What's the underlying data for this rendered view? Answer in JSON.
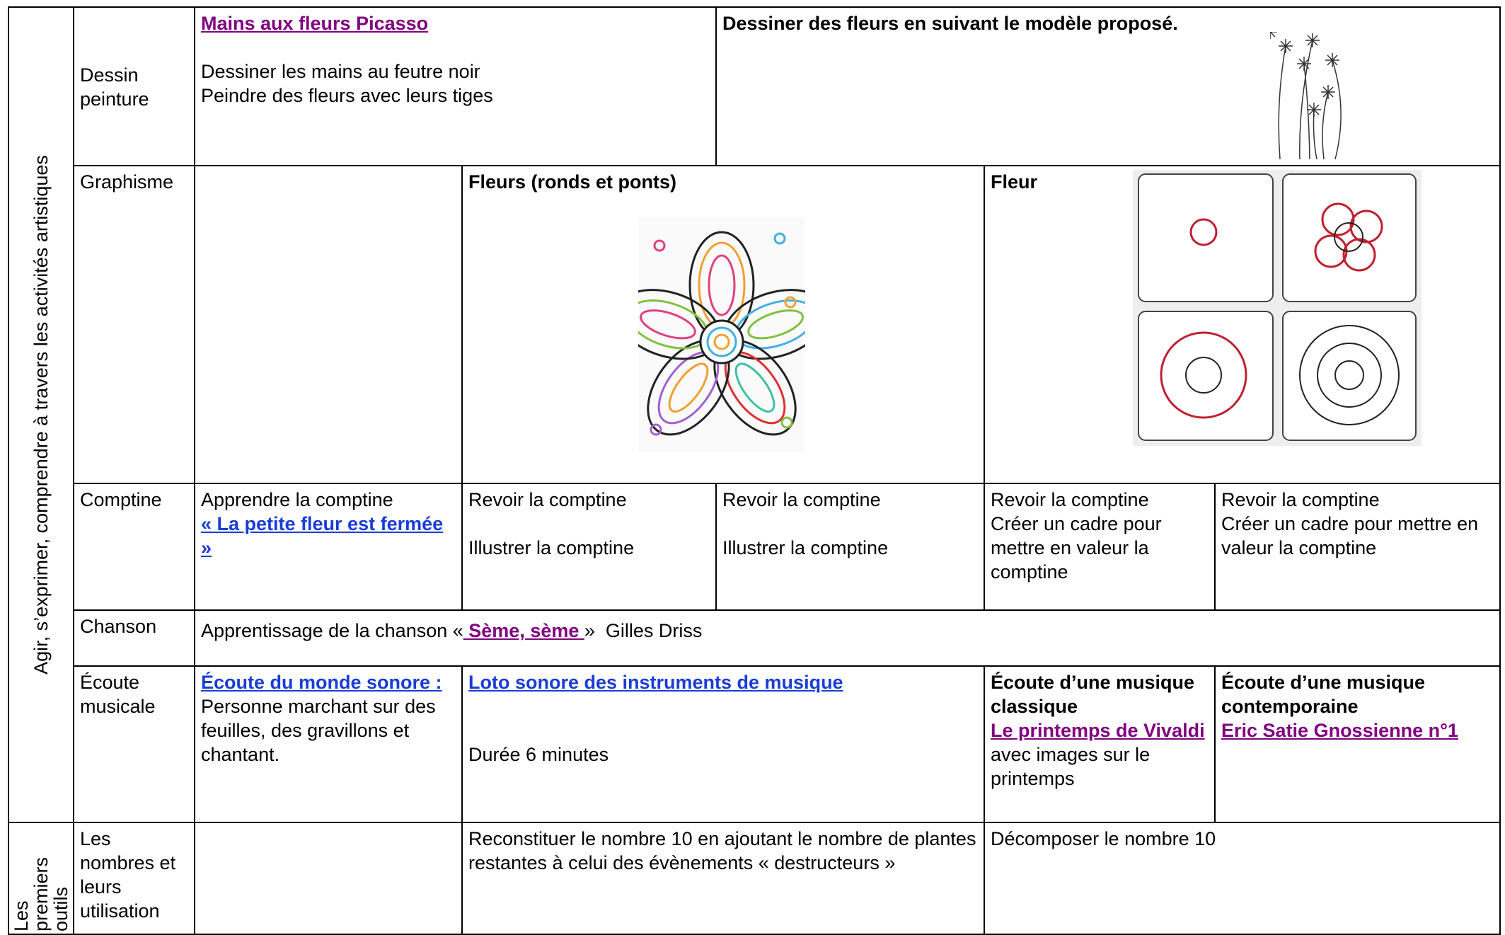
{
  "side_labels": [
    "Agir, s’exprimer, comprendre à travers les activités artistiques",
    "Les premiers outils"
  ],
  "rows": [
    {
      "label": "Dessin peinture",
      "cells": [
        {
          "link": "Mains aux fleurs Picasso",
          "lines": [
            "Dessiner les mains au feutre noir",
            "Peindre des fleurs avec leurs tiges"
          ]
        },
        {
          "heading": "Dessiner des fleurs en suivant le modèle proposé."
        }
      ]
    },
    {
      "label": "Graphisme",
      "cells": [
        {
          "heading": "Fleurs (ronds et ponts)"
        },
        {
          "heading": "Fleur"
        }
      ]
    },
    {
      "label": "Comptine",
      "cells": [
        {
          "text": "Apprendre la comptine",
          "link": "«  La petite fleur est fermée »"
        },
        {
          "lines": [
            "Revoir la comptine",
            "Illustrer la comptine"
          ]
        },
        {
          "lines": [
            "Revoir la comptine",
            "Illustrer la comptine"
          ]
        },
        {
          "lines": [
            "Revoir la comptine",
            "Créer un cadre pour mettre en valeur la comptine"
          ]
        },
        {
          "lines": [
            "Revoir la comptine",
            "Créer un cadre pour mettre en valeur la comptine"
          ]
        }
      ]
    },
    {
      "label": "Chanson",
      "cells": [
        {
          "before": "Apprentissage de la chanson «",
          "link": " Sème, sème ",
          "after": "»  Gilles Driss"
        }
      ]
    },
    {
      "label": "Écoute musicale",
      "cells": [
        {
          "link": "Écoute du monde sonore :",
          "text": "Personne marchant sur des feuilles, des gravillons et chantant."
        },
        {
          "link": "Loto sonore des instruments de musique",
          "text": "Durée 6 minutes"
        },
        {
          "heading": "Écoute d’une musique classique",
          "link": "Le printemps de Vivaldi",
          "text": "avec images sur le printemps"
        },
        {
          "heading": "Écoute d’une musique contemporaine",
          "link": "Eric Satie Gnossienne n°1"
        }
      ]
    },
    {
      "label": "Les nombres et leurs utilisation",
      "cells": [
        {
          "text": "Reconstituer le nombre 10 en ajoutant le nombre de plantes restantes à celui des évènements « destructeurs »"
        },
        {
          "text": "Décomposer le nombre 10"
        }
      ]
    }
  ]
}
